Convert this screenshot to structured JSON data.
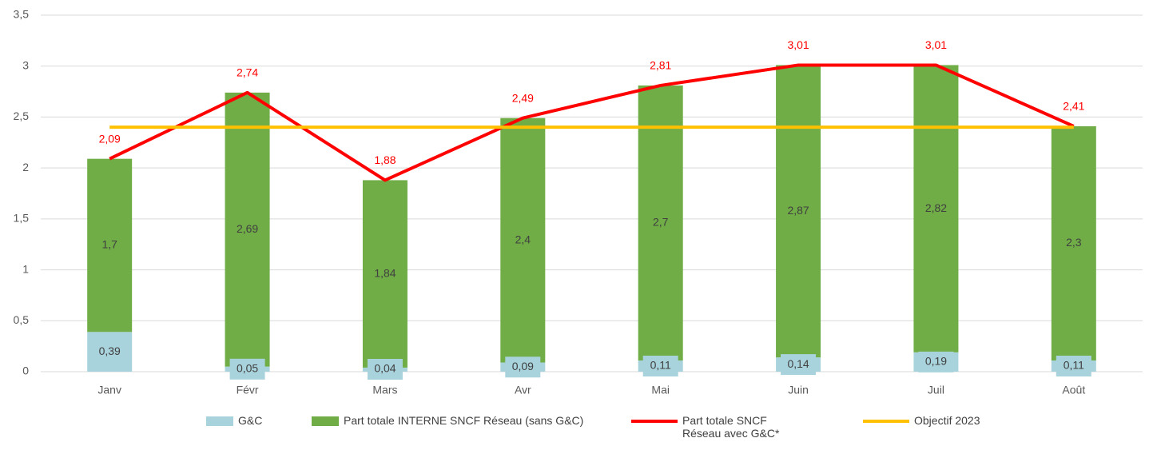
{
  "chart_data": {
    "type": "bar",
    "categories": [
      "Janv",
      "Févr",
      "Mars",
      "Avr",
      "Mai",
      "Juin",
      "Juil",
      "Août"
    ],
    "series": [
      {
        "name": "G&C",
        "type": "bar",
        "color": "#a9d3dc",
        "values": [
          0.39,
          0.05,
          0.04,
          0.09,
          0.11,
          0.14,
          0.19,
          0.11
        ],
        "value_labels": [
          "0,39",
          "0,05",
          "0,04",
          "0,09",
          "0,11",
          "0,14",
          "0,19",
          "0,11"
        ]
      },
      {
        "name": "Part totale INTERNE SNCF Réseau (sans G&C)",
        "type": "bar",
        "color": "#70ad47",
        "values": [
          1.7,
          2.69,
          1.84,
          2.4,
          2.7,
          2.87,
          2.82,
          2.3
        ],
        "value_labels": [
          "1,7",
          "2,69",
          "1,84",
          "2,4",
          "2,7",
          "2,87",
          "2,82",
          "2,3"
        ]
      },
      {
        "name": "Part totale SNCF Réseau avec G&C*",
        "type": "line",
        "color": "#ff0000",
        "values": [
          2.09,
          2.74,
          1.88,
          2.49,
          2.81,
          3.01,
          3.01,
          2.41
        ],
        "value_labels": [
          "2,09",
          "2,74",
          "1,88",
          "2,49",
          "2,81",
          "3,01",
          "3,01",
          "2,41"
        ]
      },
      {
        "name": "Objectif 2023",
        "type": "line",
        "color": "#ffc000",
        "values": [
          2.4,
          2.4,
          2.4,
          2.4,
          2.4,
          2.4,
          2.4,
          2.4
        ]
      }
    ],
    "stacked": true,
    "ylim": [
      0,
      3.5
    ],
    "yticks": [
      0,
      {
        "value": 0.5,
        "label": "0,5"
      },
      1,
      {
        "value": 1.5,
        "label": "1,5"
      },
      2,
      {
        "value": 2.5,
        "label": "2,5"
      },
      3,
      {
        "value": 3.5,
        "label": "3,5"
      }
    ],
    "grid": true
  }
}
